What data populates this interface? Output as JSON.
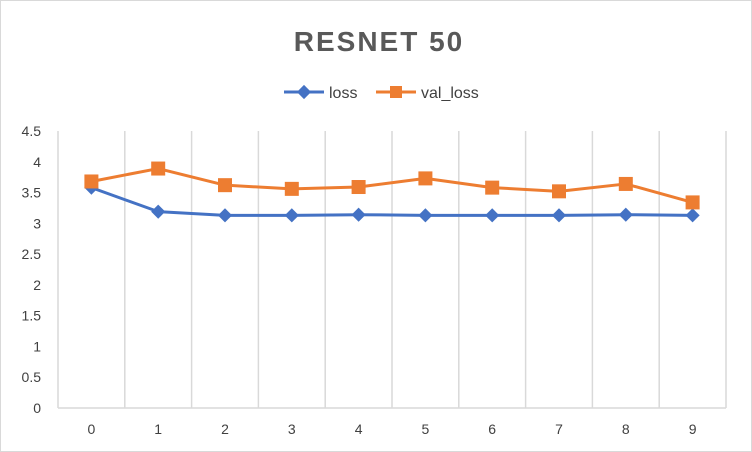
{
  "chart_data": {
    "type": "line",
    "title": "RESNET 50",
    "xlabel": "",
    "ylabel": "",
    "categories": [
      "0",
      "1",
      "2",
      "3",
      "4",
      "5",
      "6",
      "7",
      "8",
      "9"
    ],
    "y_ticks": [
      "0",
      "0.5",
      "1",
      "1.5",
      "2",
      "2.5",
      "3",
      "3.5",
      "4",
      "4.5"
    ],
    "ylim": [
      0,
      4.5
    ],
    "grid": "vertical",
    "legend_position": "top",
    "series": [
      {
        "name": "loss",
        "color": "#4472c4",
        "marker": "diamond",
        "values": [
          3.58,
          3.19,
          3.13,
          3.13,
          3.14,
          3.13,
          3.13,
          3.13,
          3.14,
          3.13
        ]
      },
      {
        "name": "val_loss",
        "color": "#ed7d31",
        "marker": "square",
        "values": [
          3.68,
          3.89,
          3.62,
          3.56,
          3.59,
          3.73,
          3.58,
          3.52,
          3.64,
          3.34
        ]
      }
    ]
  }
}
